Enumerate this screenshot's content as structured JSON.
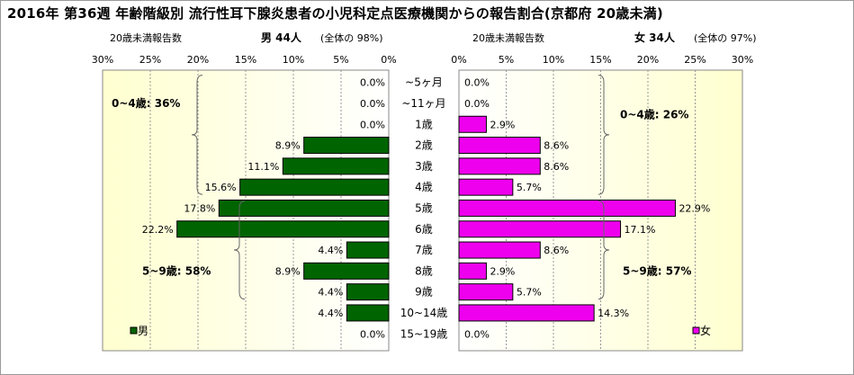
{
  "title": "2016年 第36週 年齢階級別 流行性耳下腺炎患者の小児科定点医療機関からの報告割合(京都府 20歳未満)",
  "left_header": {
    "label": "20歳未満報告数",
    "sex_count": "男  44人",
    "share": "(全体の  98%)"
  },
  "right_header": {
    "label": "20歳未満報告数",
    "sex_count": "女  34人",
    "share": "(全体の  97%)"
  },
  "chart_data": {
    "type": "bar",
    "orientation": "horizontal-butterfly",
    "categories": [
      "~5ヶ月",
      "~11ヶ月",
      "1歳",
      "2歳",
      "3歳",
      "4歳",
      "5歳",
      "6歳",
      "7歳",
      "8歳",
      "9歳",
      "10~14歳",
      "15~19歳"
    ],
    "series": [
      {
        "name": "男",
        "color": "#006400",
        "side": "left",
        "values": [
          0.0,
          0.0,
          0.0,
          8.9,
          11.1,
          15.6,
          17.8,
          22.2,
          4.4,
          8.9,
          4.4,
          4.4,
          0.0
        ]
      },
      {
        "name": "女",
        "color": "#ee00ee",
        "side": "right",
        "values": [
          0.0,
          0.0,
          2.9,
          8.6,
          8.6,
          5.7,
          22.9,
          17.1,
          8.6,
          2.9,
          5.7,
          14.3,
          0.0
        ]
      }
    ],
    "xlim": [
      0,
      30
    ],
    "ticks": [
      "30%",
      "25%",
      "20%",
      "15%",
      "10%",
      "5%",
      "0%"
    ],
    "ticks_right": [
      "0%",
      "5%",
      "10%",
      "15%",
      "20%",
      "25%",
      "30%"
    ],
    "bracket_labels": {
      "left_0_4": "0~4歳: 36%",
      "left_5_9": "5~9歳: 58%",
      "right_0_4": "0~4歳: 26%",
      "right_5_9": "5~9歳: 57%"
    },
    "legend": {
      "male": "男",
      "female": "女"
    },
    "plot_background": [
      "#ffffd0",
      "#ffffff"
    ],
    "grid": true
  }
}
